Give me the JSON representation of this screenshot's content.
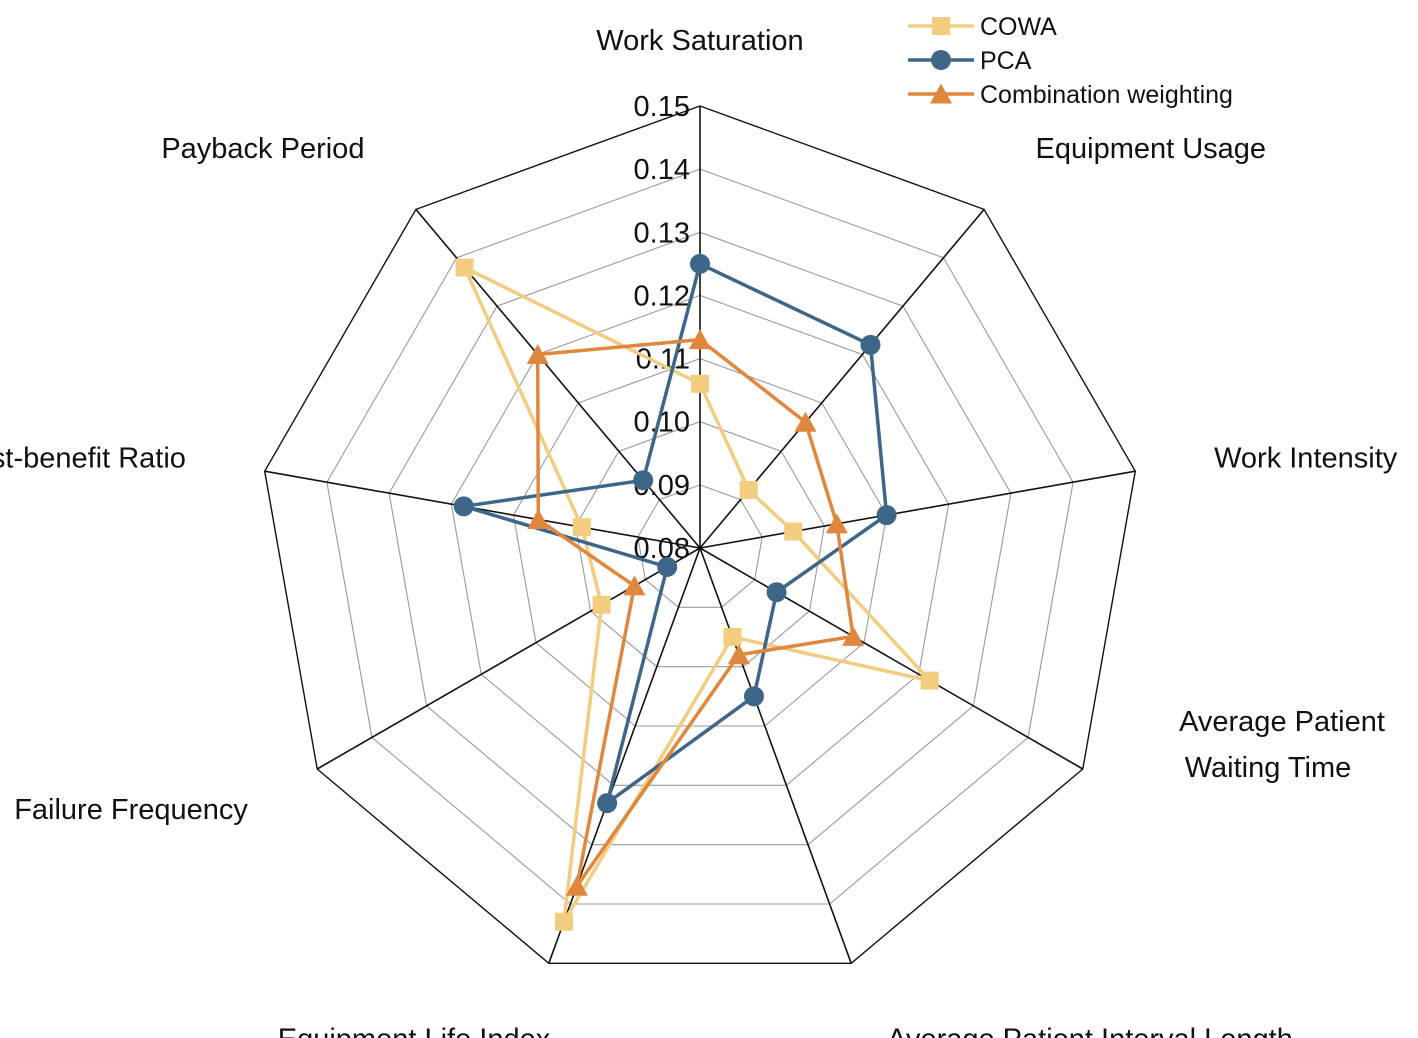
{
  "chart_data": {
    "type": "radar",
    "axes": [
      "Work Saturation",
      "Equipment Usage",
      "Work Intensity",
      "Average Patient Waiting Time",
      "Average Patient Interval Length",
      "Equipment Life Index",
      "Failure Frequency",
      "Cost-benefit Ratio",
      "Payback Period"
    ],
    "axis_label_lines": [
      [
        "Work Saturation"
      ],
      [
        "Equipment Usage"
      ],
      [
        "Work Intensity"
      ],
      [
        "Average Patient",
        "Waiting Time"
      ],
      [
        "Average Patient Interval Length"
      ],
      [
        "Equipment Life Index"
      ],
      [
        "Failure Frequency"
      ],
      [
        "Cost-benefit Ratio"
      ],
      [
        "Payback Period"
      ]
    ],
    "radial_ticks": [
      "0.08",
      "0.09",
      "0.10",
      "0.11",
      "0.12",
      "0.13",
      "0.14",
      "0.15"
    ],
    "rmin": 0.08,
    "rmax": 0.15,
    "legend_position": "top-right",
    "series": [
      {
        "name": "COWA",
        "color": "#F2CD80",
        "marker": "square",
        "values": [
          0.106,
          0.092,
          0.095,
          0.122,
          0.095,
          0.143,
          0.098,
          0.099,
          0.138
        ]
      },
      {
        "name": "PCA",
        "color": "#3D6689",
        "marker": "circle",
        "values": [
          0.125,
          0.122,
          0.11,
          0.094,
          0.105,
          0.123,
          0.086,
          0.118,
          0.094
        ]
      },
      {
        "name": "Combination weighting",
        "color": "#E0873E",
        "marker": "triangle",
        "values": [
          0.113,
          0.106,
          0.102,
          0.108,
          0.098,
          0.137,
          0.092,
          0.106,
          0.12
        ]
      }
    ]
  }
}
